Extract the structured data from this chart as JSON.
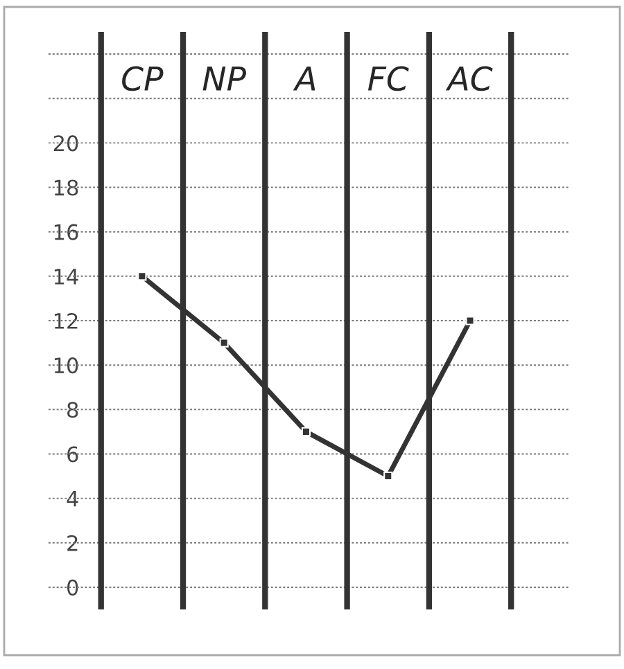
{
  "chart_data": {
    "type": "line",
    "categories": [
      "CP",
      "NP",
      "A",
      "FC",
      "AC"
    ],
    "series": [
      {
        "color": "#333333",
        "values": [
          14,
          11,
          7,
          5,
          12
        ]
      }
    ],
    "ylim": [
      -1,
      25
    ],
    "yticks": [
      0,
      2,
      4,
      6,
      8,
      10,
      12,
      14,
      16,
      18,
      20,
      {
        "value": 22,
        "label": null
      },
      {
        "value": 24,
        "label": null
      }
    ],
    "grid": true,
    "marker": "square",
    "line_style": "solid"
  }
}
